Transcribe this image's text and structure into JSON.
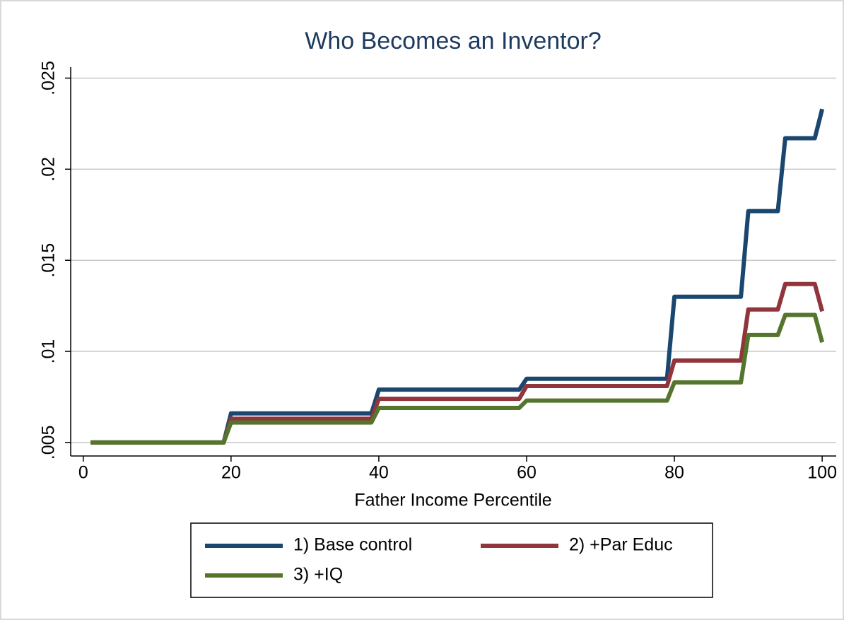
{
  "chart_data": {
    "type": "line",
    "title": "Who Becomes an Inventor?",
    "x_label": "Father Income Percentile",
    "x": [
      1,
      19,
      20,
      39,
      40,
      59,
      60,
      79,
      80,
      89,
      90,
      94,
      95,
      99,
      100
    ],
    "series": [
      {
        "name": "1) Base control",
        "color": "#1a476f",
        "values": [
          0.005,
          0.005,
          0.0066,
          0.0066,
          0.0079,
          0.0079,
          0.0085,
          0.0085,
          0.013,
          0.013,
          0.0177,
          0.0177,
          0.0217,
          0.0217,
          0.0233
        ]
      },
      {
        "name": "2) +Par Educ",
        "color": "#90353b",
        "values": [
          0.005,
          0.005,
          0.0063,
          0.0063,
          0.0074,
          0.0074,
          0.0081,
          0.0081,
          0.0095,
          0.0095,
          0.0123,
          0.0123,
          0.0137,
          0.0137,
          0.0122
        ]
      },
      {
        "name": "3) +IQ",
        "color": "#55752f",
        "values": [
          0.005,
          0.005,
          0.0061,
          0.0061,
          0.0069,
          0.0069,
          0.0073,
          0.0073,
          0.0083,
          0.0083,
          0.0109,
          0.0109,
          0.012,
          0.012,
          0.0105
        ]
      }
    ],
    "xlim": [
      -1.7,
      101.9
    ],
    "xticks": [
      0,
      20,
      40,
      60,
      80,
      100
    ],
    "ylim": [
      0.00426,
      0.0256
    ],
    "yticks": [
      {
        "value": 0.005,
        "label": ".005"
      },
      {
        "value": 0.01,
        "label": ".01"
      },
      {
        "value": 0.015,
        "label": ".015"
      },
      {
        "value": 0.02,
        "label": ".02"
      },
      {
        "value": 0.025,
        "label": ".025"
      }
    ],
    "grid": true
  }
}
